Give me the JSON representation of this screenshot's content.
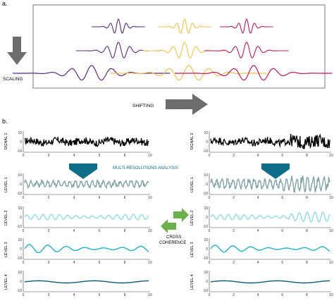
{
  "panel_a": {
    "label": "a.",
    "scaling_label": "SCALING",
    "shifting_label": "SHIFTING",
    "wavelet_colors": [
      "#5b2a86",
      "#f2c14e",
      "#c2185b"
    ]
  },
  "panel_b": {
    "label": "b.",
    "mra_label": "MULTI-RESOLUTIONS ANALYSIS",
    "cross_coherence_label": [
      "CROSS",
      "COHERENCE"
    ],
    "colors": {
      "signal": "#000000",
      "level1": "#7fa3a6",
      "level2": "#8fdbe6",
      "level3": "#1fb3c8",
      "level4": "#0e5e6f",
      "arrow_down": "#0e6e87",
      "arrow_cross": "#6ab04c"
    },
    "left_plots": [
      {
        "ylabel": "SIGNAL 1",
        "yticks": [
          "10",
          "0",
          "-10"
        ]
      },
      {
        "ylabel": "LEVEL 1",
        "yticks": [
          "10",
          "0",
          "-10"
        ]
      },
      {
        "ylabel": "LEVEL 2",
        "yticks": [
          "10",
          "0",
          "-10"
        ]
      },
      {
        "ylabel": "LEVEL 3",
        "yticks": [
          "10",
          "0",
          "-10"
        ]
      },
      {
        "ylabel": "LEVEL 4",
        "yticks": [
          "10",
          "0",
          "-10"
        ]
      }
    ],
    "right_plots": [
      {
        "ylabel": "SIGNAL 2",
        "yticks": [
          "10",
          "0",
          "-10"
        ]
      },
      {
        "ylabel": "LEVEL 1",
        "yticks": [
          "10",
          "0",
          "-10"
        ]
      },
      {
        "ylabel": "LEVEL 2",
        "yticks": [
          "10",
          "0",
          "-10"
        ]
      },
      {
        "ylabel": "LEVEL 3",
        "yticks": [
          "10",
          "0",
          "-10"
        ]
      },
      {
        "ylabel": "LEVEL 4",
        "yticks": [
          "10",
          "0",
          "-10"
        ]
      }
    ],
    "xticks": [
      "0",
      "2",
      "4",
      "6",
      "8",
      "10"
    ]
  }
}
